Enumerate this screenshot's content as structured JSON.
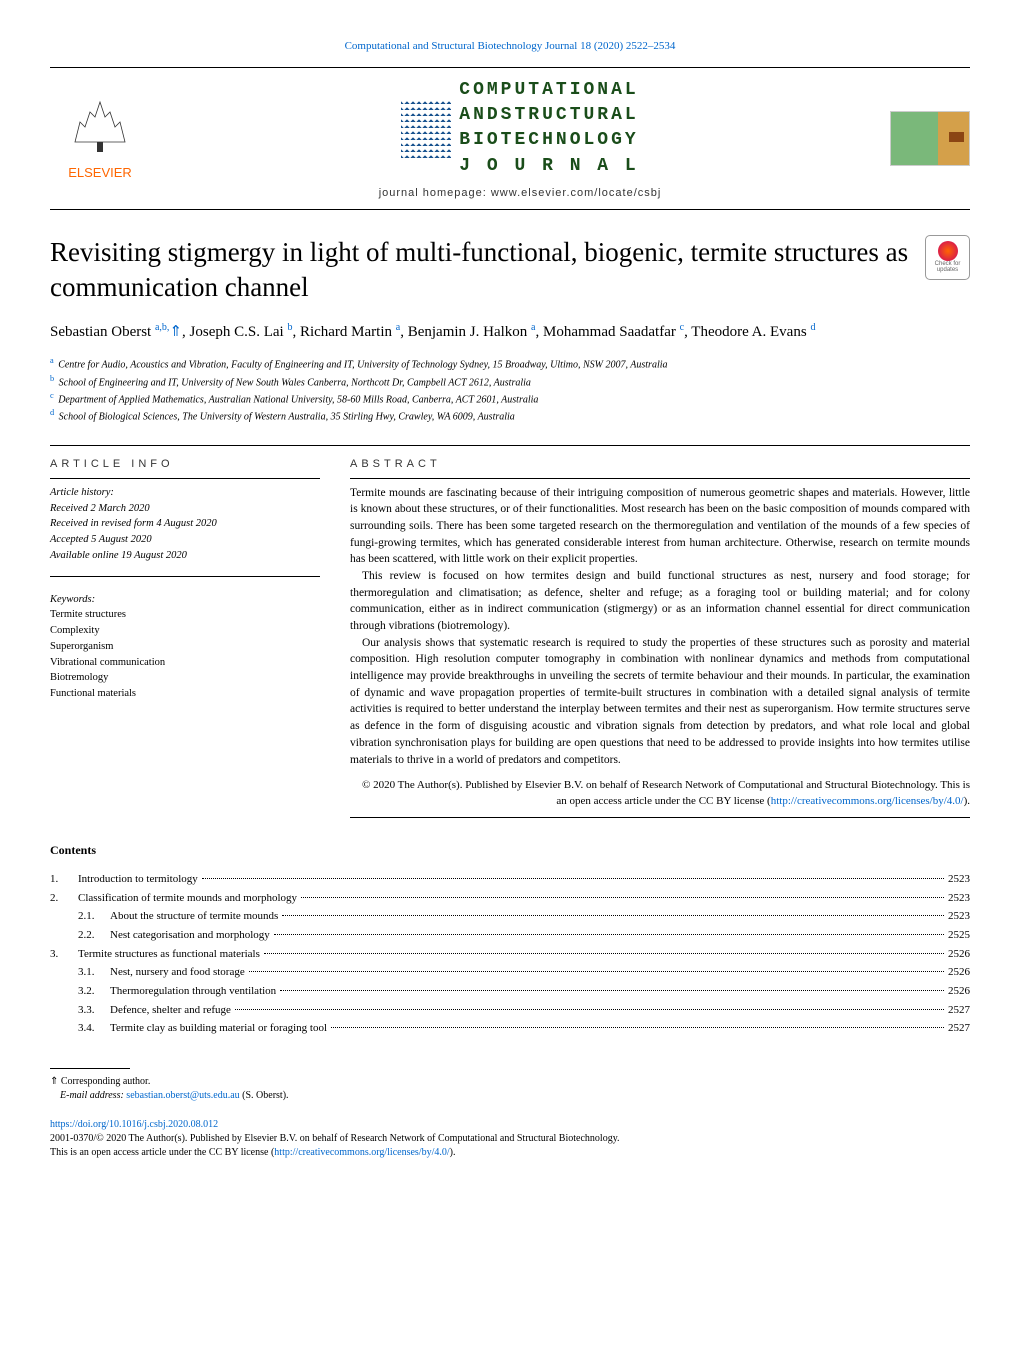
{
  "journal_ref": "Computational and Structural Biotechnology Journal 18 (2020) 2522–2534",
  "journal_name_lines": [
    "COMPUTATIONAL",
    "ANDSTRUCTURAL",
    "BIOTECHNOLOGY",
    "J O U R N A L"
  ],
  "homepage": "journal homepage: www.elsevier.com/locate/csbj",
  "elsevier": "ELSEVIER",
  "title": "Revisiting stigmergy in light of multi-functional, biogenic, termite structures as communication channel",
  "check_updates": "Check for updates",
  "authors_html": "Sebastian Oberst <sup>a,b,</sup><span class='corr'>⇑</span>, Joseph C.S. Lai <sup>b</sup>, Richard Martin <sup>a</sup>, Benjamin J. Halkon <sup>a</sup>, Mohammad Saadatfar <sup>c</sup>, Theodore A. Evans <sup>d</sup>",
  "affiliations": [
    {
      "sup": "a",
      "text": "Centre for Audio, Acoustics and Vibration, Faculty of Engineering and IT, University of Technology Sydney, 15 Broadway, Ultimo, NSW 2007, Australia"
    },
    {
      "sup": "b",
      "text": "School of Engineering and IT, University of New South Wales Canberra, Northcott Dr, Campbell ACT 2612, Australia"
    },
    {
      "sup": "c",
      "text": "Department of Applied Mathematics, Australian National University, 58-60 Mills Road, Canberra, ACT 2601, Australia"
    },
    {
      "sup": "d",
      "text": "School of Biological Sciences, The University of Western Australia, 35 Stirling Hwy, Crawley, WA 6009, Australia"
    }
  ],
  "article_info_header": "ARTICLE INFO",
  "abstract_header": "ABSTRACT",
  "history_label": "Article history:",
  "history": [
    "Received 2 March 2020",
    "Received in revised form 4 August 2020",
    "Accepted 5 August 2020",
    "Available online 19 August 2020"
  ],
  "keywords_label": "Keywords:",
  "keywords": [
    "Termite structures",
    "Complexity",
    "Superorganism",
    "Vibrational communication",
    "Biotremology",
    "Functional materials"
  ],
  "abstract_paragraphs": [
    "Termite mounds are fascinating because of their intriguing composition of numerous geometric shapes and materials. However, little is known about these structures, or of their functionalities. Most research has been on the basic composition of mounds compared with surrounding soils. There has been some targeted research on the thermoregulation and ventilation of the mounds of a few species of fungi-growing termites, which has generated considerable interest from human architecture. Otherwise, research on termite mounds has been scattered, with little work on their explicit properties.",
    "This review is focused on how termites design and build functional structures as nest, nursery and food storage; for thermoregulation and climatisation; as defence, shelter and refuge; as a foraging tool or building material; and for colony communication, either as in indirect communication (stigmergy) or as an information channel essential for direct communication through vibrations (biotremology).",
    "Our analysis shows that systematic research is required to study the properties of these structures such as porosity and material composition. High resolution computer tomography in combination with nonlinear dynamics and methods from computational intelligence may provide breakthroughs in unveiling the secrets of termite behaviour and their mounds. In particular, the examination of dynamic and wave propagation properties of termite-built structures in combination with a detailed signal analysis of termite activities is required to better understand the interplay between termites and their nest as superorganism. How termite structures serve as defence in the form of disguising acoustic and vibration signals from detection by predators, and what role local and global vibration synchronisation plays for building are open questions that need to be addressed to provide insights into how termites utilise materials to thrive in a world of predators and competitors."
  ],
  "copyright_text": "© 2020 The Author(s). Published by Elsevier B.V. on behalf of Research Network of Computational and Structural Biotechnology. This is an open access article under the CC BY license (",
  "copyright_link": "http://creativecommons.org/licenses/by/4.0/",
  "copyright_close": ").",
  "contents_header": "Contents",
  "toc": [
    {
      "num": "1.",
      "sub": "",
      "text": "Introduction to termitology",
      "page": "2523",
      "indent": 0
    },
    {
      "num": "2.",
      "sub": "",
      "text": "Classification of termite mounds and morphology",
      "page": "2523",
      "indent": 0
    },
    {
      "num": "",
      "sub": "2.1.",
      "text": "About the structure of termite mounds",
      "page": "2523",
      "indent": 1
    },
    {
      "num": "",
      "sub": "2.2.",
      "text": "Nest categorisation and morphology",
      "page": "2525",
      "indent": 1
    },
    {
      "num": "3.",
      "sub": "",
      "text": "Termite structures as functional materials",
      "page": "2526",
      "indent": 0
    },
    {
      "num": "",
      "sub": "3.1.",
      "text": "Nest, nursery and food storage",
      "page": "2526",
      "indent": 1
    },
    {
      "num": "",
      "sub": "3.2.",
      "text": "Thermoregulation through ventilation",
      "page": "2526",
      "indent": 1
    },
    {
      "num": "",
      "sub": "3.3.",
      "text": "Defence, shelter and refuge",
      "page": "2527",
      "indent": 1
    },
    {
      "num": "",
      "sub": "3.4.",
      "text": "Termite clay as building material or foraging tool",
      "page": "2527",
      "indent": 1
    }
  ],
  "corr_symbol": "⇑",
  "corr_text": "Corresponding author.",
  "email_label": "E-mail address:",
  "email": "sebastian.oberst@uts.edu.au",
  "email_owner": "(S. Oberst).",
  "doi": "https://doi.org/10.1016/j.csbj.2020.08.012",
  "issn_line": "2001-0370/© 2020 The Author(s). Published by Elsevier B.V. on behalf of Research Network of Computational and Structural Biotechnology.",
  "license_line_prefix": "This is an open access article under the CC BY license (",
  "license_link": "http://creativecommons.org/licenses/by/4.0/",
  "license_line_suffix": ")."
}
